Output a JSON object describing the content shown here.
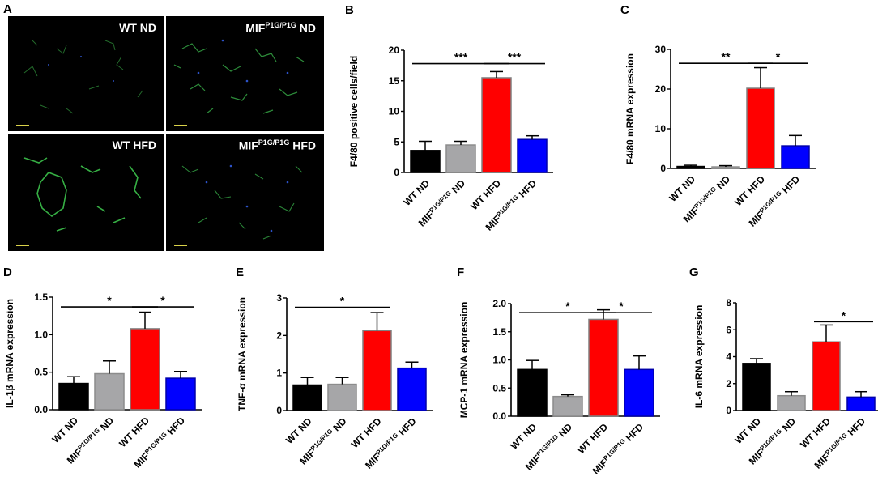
{
  "panel_letters": [
    "A",
    "B",
    "C",
    "D",
    "E",
    "F",
    "G"
  ],
  "micrographs": [
    {
      "label": "WT ND"
    },
    {
      "label_main": "MIF",
      "label_sup": "P1G/P1G",
      "label_tail": " ND"
    },
    {
      "label": "WT HFD"
    },
    {
      "label_main": "MIF",
      "label_sup": "P1G/P1G",
      "label_tail": " HFD"
    }
  ],
  "category_labels": [
    {
      "main": "WT ND"
    },
    {
      "main": "MIF",
      "sup": "P1G/P1G",
      "tail": " ND"
    },
    {
      "main": "WT HFD"
    },
    {
      "main": "MIF",
      "sup": "P1G/P1G",
      "tail": " HFD"
    }
  ],
  "colors": {
    "WT ND": "#000000",
    "MIF ND": "#a6a6a8",
    "WT HFD": "#ff0000",
    "MIF HFD": "#0000ff"
  },
  "chart_data": [
    {
      "panel": "B",
      "type": "bar",
      "ylabel": "F4/80 positive cells/field",
      "categories": [
        "WT ND",
        "MIFP1G/P1G ND",
        "WT HFD",
        "MIFP1G/P1G HFD"
      ],
      "values": [
        3.6,
        4.5,
        15.5,
        5.4
      ],
      "errors": [
        1.5,
        0.6,
        1.0,
        0.6
      ],
      "ylim": [
        0,
        20
      ],
      "yticks": [
        "0",
        "5",
        "10",
        "15",
        "20"
      ],
      "significance": [
        {
          "from": 0,
          "to": 2,
          "label": "***",
          "y": 17.8
        },
        {
          "from": 2,
          "to": 3,
          "label": "***",
          "y": 17.8
        }
      ]
    },
    {
      "panel": "C",
      "type": "bar",
      "ylabel": "F4/80 mRNA expression",
      "categories": [
        "WT ND",
        "MIFP1G/P1G ND",
        "WT HFD",
        "MIFP1G/P1G HFD"
      ],
      "values": [
        0.5,
        0.4,
        20.2,
        5.7
      ],
      "errors": [
        0.3,
        0.3,
        5.2,
        2.6
      ],
      "ylim": [
        0,
        30
      ],
      "yticks": [
        "0",
        "10",
        "20",
        "30"
      ],
      "significance": [
        {
          "from": 0,
          "to": 2,
          "label": "**",
          "y": 26.5
        },
        {
          "from": 2,
          "to": 3,
          "label": "*",
          "y": 26.5
        }
      ]
    },
    {
      "panel": "D",
      "type": "bar",
      "ylabel": "IL-1β mRNA expression",
      "categories": [
        "WT ND",
        "MIFP1G/P1G ND",
        "WT HFD",
        "MIFP1G/P1G HFD"
      ],
      "values": [
        0.35,
        0.48,
        1.08,
        0.42
      ],
      "errors": [
        0.09,
        0.17,
        0.22,
        0.09
      ],
      "ylim": [
        0,
        1.5
      ],
      "yticks": [
        "0.0",
        "0.5",
        "1.0",
        "1.5"
      ],
      "significance": [
        {
          "from": 0,
          "to": 2,
          "label": "*",
          "y": 1.37
        },
        {
          "from": 2,
          "to": 3,
          "label": "*",
          "y": 1.37
        }
      ]
    },
    {
      "panel": "E",
      "type": "bar",
      "ylabel": "TNF-α mRNA expression",
      "categories": [
        "WT ND",
        "MIFP1G/P1G ND",
        "WT HFD",
        "MIFP1G/P1G HFD"
      ],
      "values": [
        0.68,
        0.7,
        2.13,
        1.13
      ],
      "errors": [
        0.2,
        0.18,
        0.48,
        0.16
      ],
      "ylim": [
        0,
        3
      ],
      "yticks": [
        "0",
        "1",
        "2",
        "3"
      ],
      "significance": [
        {
          "from": 0,
          "to": 2,
          "label": "*",
          "y": 2.75
        }
      ]
    },
    {
      "panel": "F",
      "type": "bar",
      "ylabel": "MCP-1 mRNA expression",
      "categories": [
        "WT ND",
        "MIFP1G/P1G ND",
        "WT HFD",
        "MIFP1G/P1G HFD"
      ],
      "values": [
        0.83,
        0.35,
        1.72,
        0.83
      ],
      "errors": [
        0.16,
        0.03,
        0.17,
        0.24
      ],
      "ylim": [
        0,
        2.0
      ],
      "yticks": [
        "0.0",
        "0.5",
        "1.0",
        "1.5",
        "2.0"
      ],
      "significance": [
        {
          "from": 0,
          "to": 2,
          "label": "*",
          "y": 1.84
        },
        {
          "from": 2,
          "to": 3,
          "label": "*",
          "y": 1.84
        }
      ]
    },
    {
      "panel": "G",
      "type": "bar",
      "ylabel": "IL-6 mRNA expression",
      "categories": [
        "WT ND",
        "MIFP1G/P1G ND",
        "WT HFD",
        "MIFP1G/P1G HFD"
      ],
      "values": [
        3.5,
        1.1,
        5.1,
        1.0
      ],
      "errors": [
        0.35,
        0.3,
        1.25,
        0.4
      ],
      "ylim": [
        0,
        8
      ],
      "yticks": [
        "0",
        "2",
        "4",
        "6",
        "8"
      ],
      "significance": [
        {
          "from": 2,
          "to": 3,
          "label": "*",
          "y": 6.6
        }
      ]
    }
  ]
}
